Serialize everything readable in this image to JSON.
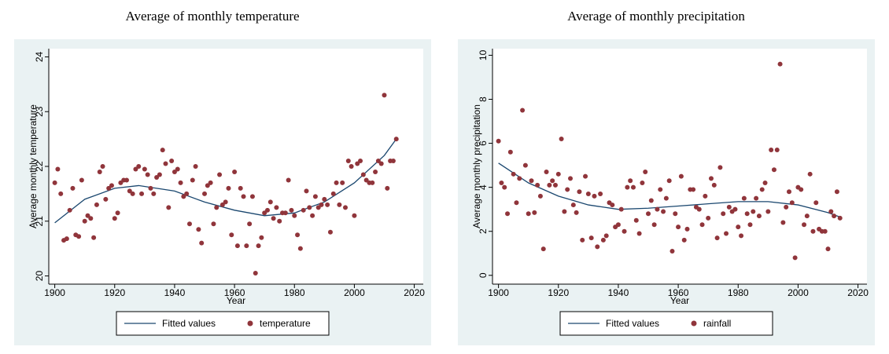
{
  "chart_data": [
    {
      "type": "scatter",
      "title": "Average of monthly temperature",
      "xlabel": "Year",
      "ylabel": "Average monthly temperature",
      "xlim": [
        1898,
        2023
      ],
      "ylim": [
        19.85,
        24.15
      ],
      "xticks": [
        1900,
        1920,
        1940,
        1960,
        1980,
        2000,
        2020
      ],
      "yticks": [
        20,
        21,
        22,
        23,
        24
      ],
      "series": [
        {
          "name": "Fitted values",
          "mode": "line",
          "color": "#1a476f",
          "x": [
            1900,
            1910,
            1920,
            1928,
            1940,
            1950,
            1960,
            1970,
            1980,
            1990,
            2000,
            2010,
            2014
          ],
          "values": [
            20.97,
            21.4,
            21.6,
            21.65,
            21.55,
            21.35,
            21.2,
            21.1,
            21.15,
            21.35,
            21.7,
            22.2,
            22.5
          ]
        },
        {
          "name": "temperature",
          "mode": "markers",
          "color": "#90353b",
          "x": [
            1900,
            1901,
            1902,
            1903,
            1904,
            1905,
            1906,
            1907,
            1908,
            1909,
            1910,
            1911,
            1912,
            1913,
            1914,
            1915,
            1916,
            1917,
            1918,
            1919,
            1920,
            1921,
            1922,
            1923,
            1924,
            1925,
            1926,
            1927,
            1928,
            1929,
            1930,
            1931,
            1932,
            1933,
            1934,
            1935,
            1936,
            1937,
            1938,
            1939,
            1940,
            1941,
            1942,
            1943,
            1944,
            1945,
            1946,
            1947,
            1948,
            1949,
            1950,
            1951,
            1952,
            1953,
            1954,
            1955,
            1956,
            1957,
            1958,
            1959,
            1960,
            1961,
            1962,
            1963,
            1964,
            1965,
            1966,
            1967,
            1968,
            1969,
            1970,
            1971,
            1972,
            1973,
            1974,
            1975,
            1976,
            1977,
            1978,
            1979,
            1980,
            1981,
            1982,
            1983,
            1984,
            1985,
            1986,
            1987,
            1988,
            1989,
            1990,
            1991,
            1992,
            1993,
            1994,
            1995,
            1996,
            1997,
            1998,
            1999,
            2000,
            2001,
            2002,
            2003,
            2004,
            2005,
            2006,
            2007,
            2008,
            2009,
            2010,
            2011,
            2012,
            2013,
            2014
          ],
          "values": [
            21.7,
            21.95,
            21.5,
            20.65,
            20.68,
            21.2,
            21.6,
            20.75,
            20.72,
            21.75,
            21.0,
            21.1,
            21.05,
            20.7,
            21.3,
            21.9,
            22.0,
            21.4,
            21.6,
            21.65,
            21.05,
            21.15,
            21.7,
            21.75,
            21.75,
            21.55,
            21.5,
            21.95,
            22.0,
            21.5,
            21.95,
            21.85,
            21.6,
            21.5,
            21.8,
            21.85,
            22.3,
            22.05,
            21.25,
            22.1,
            21.9,
            21.95,
            21.7,
            21.45,
            21.5,
            20.95,
            21.75,
            22.0,
            20.85,
            20.6,
            21.5,
            21.65,
            21.7,
            20.95,
            21.25,
            21.85,
            21.3,
            21.35,
            21.6,
            20.75,
            21.9,
            20.55,
            21.6,
            21.45,
            20.55,
            20.95,
            21.45,
            20.05,
            20.55,
            20.7,
            21.15,
            21.2,
            21.35,
            21.05,
            21.25,
            21.0,
            21.15,
            21.15,
            21.75,
            21.2,
            21.1,
            20.75,
            20.5,
            21.2,
            21.55,
            21.25,
            21.1,
            21.45,
            21.25,
            21.3,
            21.4,
            21.3,
            20.8,
            21.5,
            21.7,
            21.3,
            21.7,
            21.25,
            22.1,
            22.0,
            21.1,
            22.05,
            22.1,
            21.85,
            21.75,
            21.7,
            21.7,
            21.9,
            22.1,
            22.05,
            23.3,
            21.6,
            22.1,
            22.1,
            22.5
          ]
        }
      ]
    },
    {
      "type": "scatter",
      "title": "Average of monthly precipitation",
      "xlabel": "Year",
      "ylabel": "Average monthly precipitation",
      "xlim": [
        1898,
        2023
      ],
      "ylim": [
        -0.4,
        10.3
      ],
      "xticks": [
        1900,
        1920,
        1940,
        1960,
        1980,
        2000,
        2020
      ],
      "yticks": [
        0,
        2,
        4,
        6,
        8,
        10
      ],
      "series": [
        {
          "name": "Fitted values",
          "mode": "line",
          "color": "#1a476f",
          "x": [
            1900,
            1910,
            1920,
            1930,
            1940,
            1950,
            1960,
            1970,
            1980,
            1990,
            2000,
            2010,
            2014
          ],
          "values": [
            5.1,
            4.2,
            3.6,
            3.2,
            3.0,
            3.05,
            3.15,
            3.25,
            3.35,
            3.35,
            3.2,
            2.85,
            2.65
          ]
        },
        {
          "name": "rainfall",
          "mode": "markers",
          "color": "#90353b",
          "x": [
            1900,
            1901,
            1902,
            1903,
            1904,
            1905,
            1906,
            1907,
            1908,
            1909,
            1910,
            1911,
            1912,
            1913,
            1914,
            1915,
            1916,
            1917,
            1918,
            1919,
            1920,
            1921,
            1922,
            1923,
            1924,
            1925,
            1926,
            1927,
            1928,
            1929,
            1930,
            1931,
            1932,
            1933,
            1934,
            1935,
            1936,
            1937,
            1938,
            1939,
            1940,
            1941,
            1942,
            1943,
            1944,
            1945,
            1946,
            1947,
            1948,
            1949,
            1950,
            1951,
            1952,
            1953,
            1954,
            1955,
            1956,
            1957,
            1958,
            1959,
            1960,
            1961,
            1962,
            1963,
            1964,
            1965,
            1966,
            1967,
            1968,
            1969,
            1970,
            1971,
            1972,
            1973,
            1974,
            1975,
            1976,
            1977,
            1978,
            1979,
            1980,
            1981,
            1982,
            1983,
            1984,
            1985,
            1986,
            1987,
            1988,
            1989,
            1990,
            1991,
            1992,
            1993,
            1994,
            1995,
            1996,
            1997,
            1998,
            1999,
            2000,
            2001,
            2002,
            2003,
            2004,
            2005,
            2006,
            2007,
            2008,
            2009,
            2010,
            2011,
            2012,
            2013,
            2014
          ],
          "values": [
            6.1,
            4.2,
            4.0,
            2.8,
            5.6,
            4.6,
            3.3,
            4.4,
            7.5,
            5.0,
            2.8,
            4.3,
            2.85,
            4.1,
            3.6,
            1.2,
            4.7,
            4.1,
            4.3,
            4.1,
            4.6,
            6.2,
            2.9,
            3.9,
            4.4,
            3.2,
            2.85,
            3.8,
            1.6,
            4.5,
            3.7,
            1.7,
            3.6,
            1.3,
            3.7,
            1.6,
            1.8,
            3.3,
            3.2,
            2.2,
            2.3,
            3.0,
            2.0,
            4.0,
            4.3,
            4.0,
            2.5,
            1.9,
            4.2,
            4.7,
            2.8,
            3.4,
            2.3,
            3.0,
            3.9,
            2.9,
            3.5,
            4.3,
            1.1,
            2.8,
            2.2,
            4.5,
            1.6,
            2.1,
            3.9,
            3.9,
            3.1,
            3.0,
            2.3,
            3.6,
            2.6,
            4.4,
            4.1,
            1.7,
            4.9,
            2.8,
            1.9,
            3.1,
            2.9,
            3.0,
            2.2,
            1.8,
            3.5,
            2.8,
            2.3,
            2.9,
            3.5,
            2.7,
            3.9,
            4.2,
            2.9,
            5.7,
            4.8,
            5.7,
            9.6,
            2.4,
            3.1,
            3.8,
            3.3,
            0.8,
            4.0,
            3.9,
            2.3,
            2.7,
            4.6,
            2.0,
            3.3,
            2.1,
            2.0,
            2.0,
            1.2,
            2.9,
            2.7,
            3.8,
            2.6
          ]
        }
      ]
    }
  ]
}
